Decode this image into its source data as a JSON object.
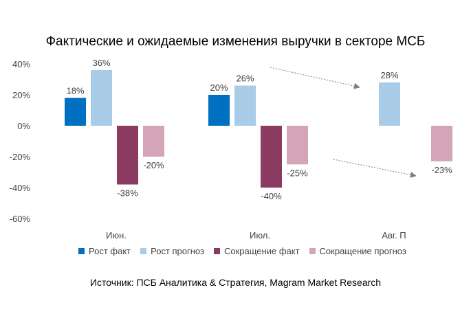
{
  "chart_data": {
    "type": "bar",
    "title": "Фактические и ожидаемые изменения выручки в секторе МСБ",
    "categories": [
      "Июн.",
      "Июл.",
      "Авг. П"
    ],
    "series": [
      {
        "name": "Рост факт",
        "values": [
          18,
          20,
          null
        ],
        "labels": [
          "18%",
          "20%",
          ""
        ],
        "color": "#0070C0"
      },
      {
        "name": "Рост прогноз",
        "values": [
          36,
          26,
          28
        ],
        "labels": [
          "36%",
          "26%",
          "28%"
        ],
        "color": "#A9CCE8"
      },
      {
        "name": "Сокращение факт",
        "values": [
          -38,
          -40,
          null
        ],
        "labels": [
          "-38%",
          "-40%",
          ""
        ],
        "color": "#8B3A62"
      },
      {
        "name": "Сокращение прогноз",
        "values": [
          -20,
          -25,
          -23
        ],
        "labels": [
          "-20%",
          "-25%",
          "-23%"
        ],
        "color": "#D4A5B8"
      }
    ],
    "ylim": [
      -60,
      40
    ],
    "yticks": [
      40,
      20,
      0,
      -20,
      -40,
      -60
    ],
    "ytick_labels": [
      "40%",
      "20%",
      "0%",
      "-20%",
      "-40%",
      "-60%"
    ],
    "xlabel": "",
    "ylabel": "",
    "grid": false,
    "legend_position": "bottom",
    "source": "Источник: ПСБ Аналитика & Стратегия, Magram Market Research"
  }
}
